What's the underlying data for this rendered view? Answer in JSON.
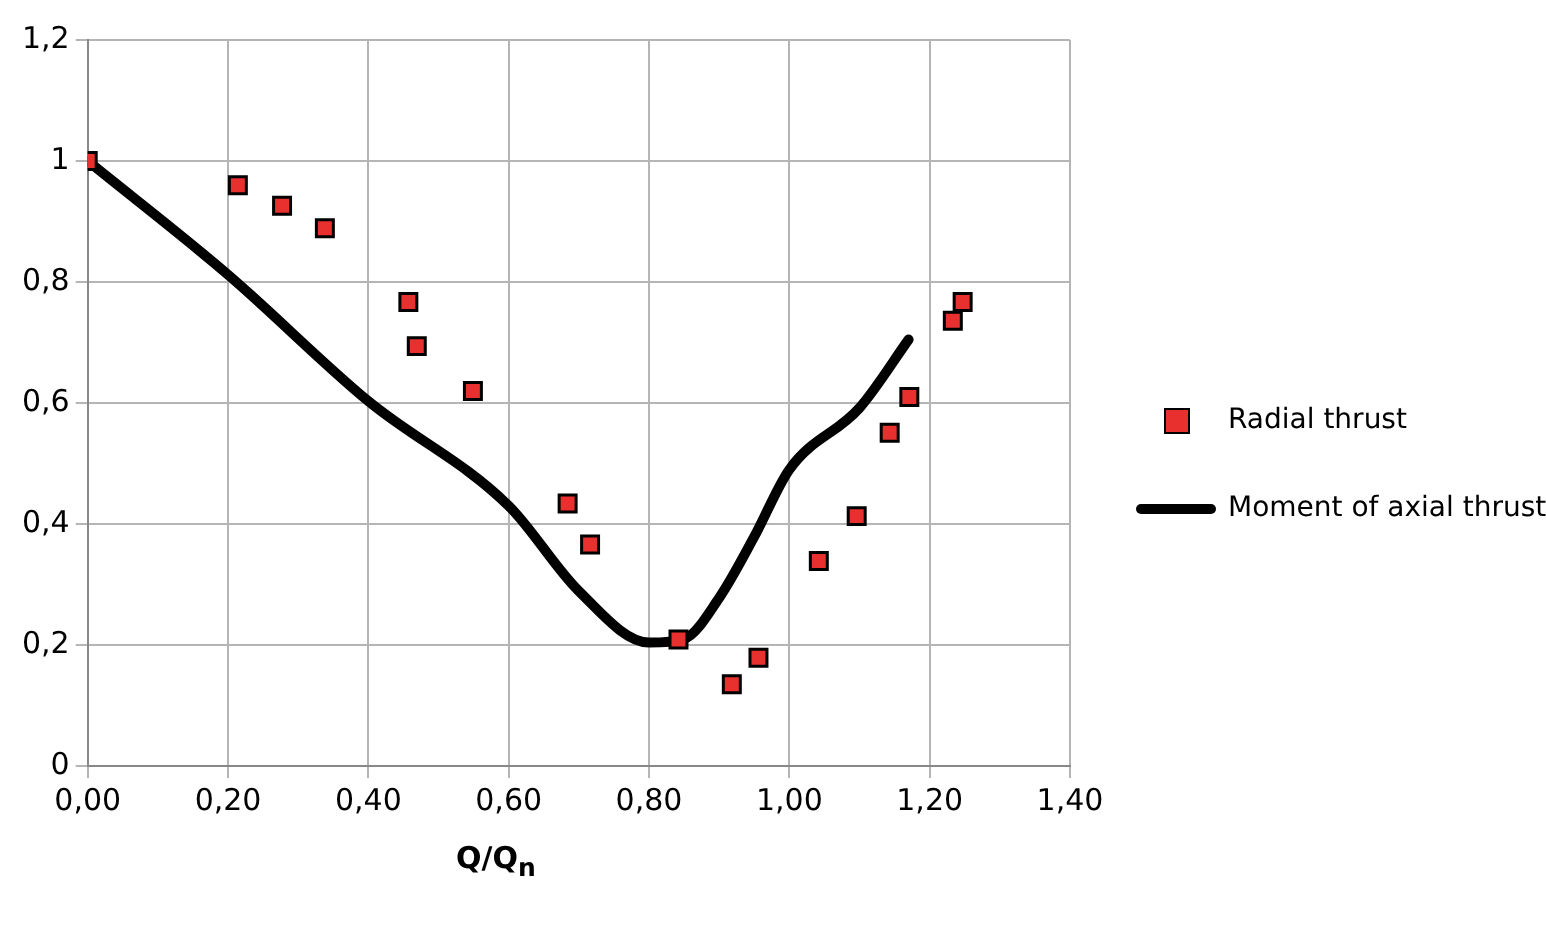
{
  "chart_data": {
    "type": "scatter",
    "xlabel": "Q/Q$_{n}$",
    "xlim": [
      0,
      1.4
    ],
    "xticks": [
      {
        "value": 0,
        "label": "0,00"
      },
      {
        "value": 0.2,
        "label": "0,20"
      },
      {
        "value": 0.4,
        "label": "0,40"
      },
      {
        "value": 0.6,
        "label": "0,60"
      },
      {
        "value": 0.8,
        "label": "0,80"
      },
      {
        "value": 1,
        "label": "1,00"
      },
      {
        "value": 1.2,
        "label": "1,20"
      },
      {
        "value": 1.4,
        "label": "1,40"
      }
    ],
    "ylim": [
      0,
      1.2
    ],
    "yticks": [
      0,
      {
        "value": 0.2,
        "label": "0,2"
      },
      {
        "value": 0.4,
        "label": "0,4"
      },
      {
        "value": 0.6,
        "label": "0,6"
      },
      {
        "value": 0.8,
        "label": "0,8"
      },
      1,
      {
        "value": 1.2,
        "label": "1,2"
      }
    ],
    "grid": true,
    "legend": "right",
    "series": [
      {
        "name": "Radial thrust",
        "type": "scatter",
        "marker": "square",
        "color": "#e8312f",
        "x": [
          0,
          0.214,
          0.277,
          0.338,
          0.457,
          0.469,
          0.549,
          0.684,
          0.716,
          0.842,
          0.918,
          0.956,
          1.042,
          1.096,
          1.143,
          1.171,
          1.233,
          1.247
        ],
        "values": [
          1,
          0.96,
          0.926,
          0.889,
          0.767,
          0.694,
          0.62,
          0.434,
          0.366,
          0.209,
          0.135,
          0.179,
          0.339,
          0.413,
          0.551,
          0.61,
          0.736,
          0.767
        ]
      },
      {
        "name": "Moment of axial thrust",
        "type": "line",
        "marker": "none",
        "color": "#000000",
        "x": [
          0,
          0.2,
          0.4,
          0.6,
          0.7,
          0.8,
          0.85,
          0.9,
          0.95,
          1,
          1.1,
          1.17
        ],
        "values": [
          1,
          0.812,
          0.603,
          0.43,
          0.289,
          0.204,
          0.21,
          0.278,
          0.379,
          0.49,
          0.592,
          0.705
        ]
      }
    ]
  }
}
